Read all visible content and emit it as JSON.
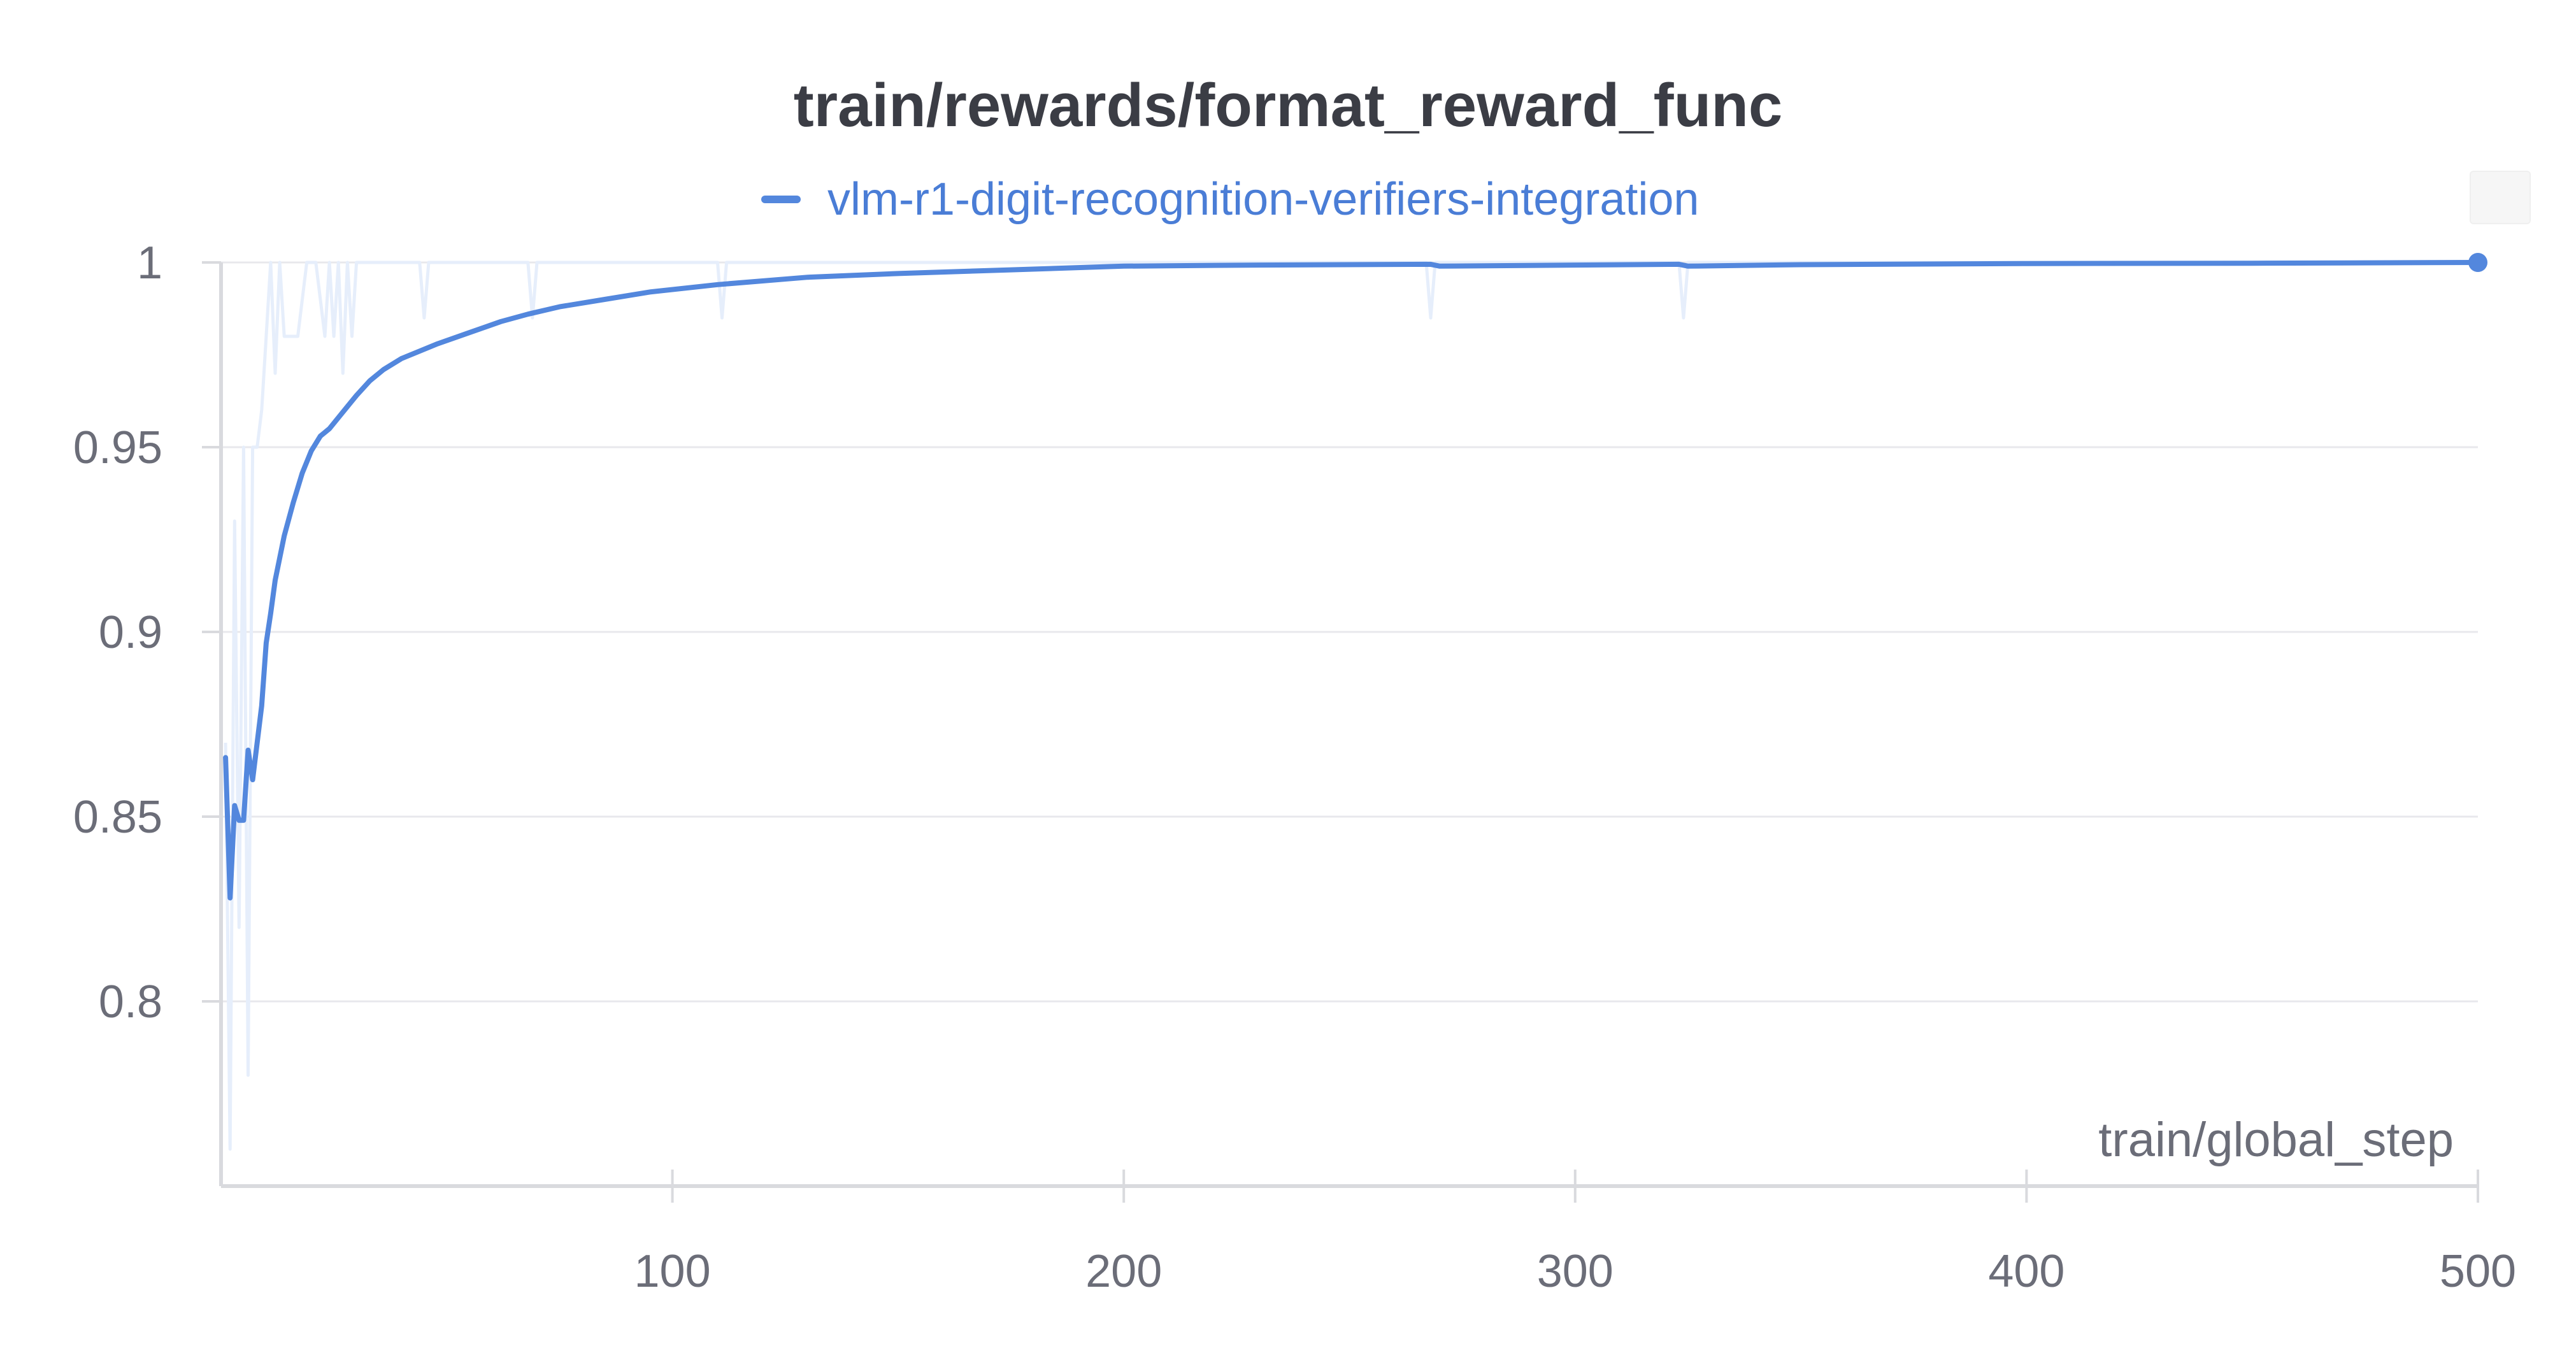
{
  "chart_data": {
    "type": "line",
    "title": "train/rewards/format_reward_func",
    "xlabel": "train/global_step",
    "ylabel": "",
    "xlim": [
      0,
      500
    ],
    "ylim": [
      0.75,
      1.0
    ],
    "x_ticks": [
      100,
      200,
      300,
      400,
      500
    ],
    "y_ticks": [
      1,
      0.95,
      0.9,
      0.85,
      0.8
    ],
    "x_tick_labels": [
      "100",
      "200",
      "300",
      "400",
      "500"
    ],
    "y_tick_labels": [
      "1",
      "0.95",
      "0.9",
      "0.85",
      "0.8"
    ],
    "grid": true,
    "legend_position": "top-center",
    "colors": {
      "smoothed": "#5387dd",
      "raw": "#e6eefb",
      "grid": "#e8e8ec",
      "axis": "#d9dade"
    },
    "series": [
      {
        "name": "vlm-r1-digit-recognition-verifiers-integration",
        "smoothed": {
          "x": [
            1,
            2,
            3,
            4,
            5,
            6,
            7,
            8,
            9,
            10,
            11,
            12,
            14,
            16,
            18,
            20,
            22,
            24,
            26,
            28,
            30,
            33,
            36,
            40,
            44,
            48,
            55,
            62,
            68,
            75,
            85,
            95,
            110,
            130,
            150,
            175,
            200,
            230,
            268,
            270,
            300,
            323,
            325,
            350,
            400,
            450,
            500
          ],
          "y": [
            0.866,
            0.828,
            0.853,
            0.849,
            0.849,
            0.868,
            0.86,
            0.87,
            0.88,
            0.897,
            0.905,
            0.914,
            0.926,
            0.935,
            0.943,
            0.949,
            0.953,
            0.955,
            0.958,
            0.961,
            0.964,
            0.968,
            0.971,
            0.974,
            0.976,
            0.978,
            0.981,
            0.984,
            0.986,
            0.988,
            0.99,
            0.992,
            0.994,
            0.996,
            0.997,
            0.998,
            0.999,
            0.9993,
            0.9995,
            0.999,
            0.9993,
            0.9995,
            0.999,
            0.9994,
            0.9997,
            0.9998,
            1.0
          ]
        },
        "raw": {
          "x": [
            1,
            2,
            3,
            4,
            5,
            6,
            7,
            8,
            9,
            10,
            11,
            12,
            13,
            14,
            15,
            17,
            19,
            21,
            23,
            24,
            25,
            26,
            27,
            28,
            29,
            30,
            32,
            34,
            36,
            40,
            44,
            45,
            46,
            50,
            60,
            68,
            69,
            70,
            80,
            100,
            110,
            111,
            112,
            130,
            200,
            267,
            268,
            269,
            300,
            323,
            324,
            325,
            400,
            500
          ],
          "y": [
            0.87,
            0.76,
            0.93,
            0.82,
            0.95,
            0.78,
            0.95,
            0.95,
            0.96,
            0.98,
            1.0,
            0.97,
            1.0,
            0.98,
            0.98,
            0.98,
            1.0,
            1.0,
            0.98,
            1.0,
            0.98,
            1.0,
            0.97,
            1.0,
            0.98,
            1.0,
            1.0,
            1.0,
            1.0,
            1.0,
            1.0,
            0.985,
            1.0,
            1.0,
            1.0,
            1.0,
            0.985,
            1.0,
            1.0,
            1.0,
            1.0,
            0.985,
            1.0,
            1.0,
            1.0,
            1.0,
            0.985,
            1.0,
            1.0,
            1.0,
            0.985,
            1.0,
            1.0,
            1.0
          ]
        }
      }
    ]
  }
}
